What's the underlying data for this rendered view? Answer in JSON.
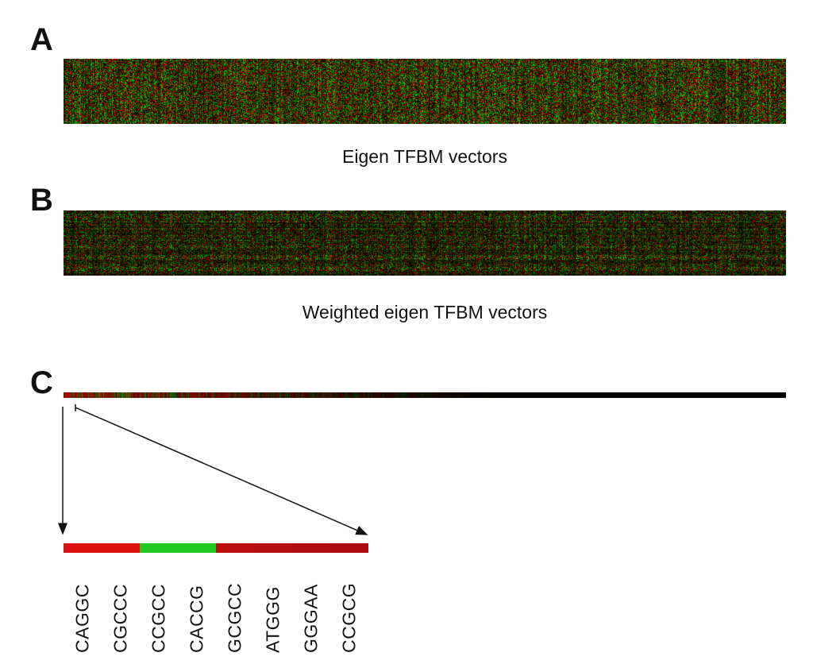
{
  "panels": {
    "a": {
      "letter": "A",
      "caption": "Eigen TFBM vectors"
    },
    "b": {
      "letter": "B",
      "caption": "Weighted eigen TFBM vectors"
    },
    "c": {
      "letter": "C"
    }
  },
  "colors": {
    "red": "#e01010",
    "green": "#10d020",
    "dark": "#000000",
    "dark_red": "#b00000"
  },
  "zoom_strip": [
    {
      "motif": "CAGGC",
      "color": "#dd1111"
    },
    {
      "motif": "CGCCC",
      "color": "#dd1111"
    },
    {
      "motif": "CCGCC",
      "color": "#22cc22"
    },
    {
      "motif": "CACCG",
      "color": "#22cc22"
    },
    {
      "motif": "GCGCC",
      "color": "#bb0f0f"
    },
    {
      "motif": "ATGGG",
      "color": "#b50e0e"
    },
    {
      "motif": "GGGAA",
      "color": "#b00e0e"
    },
    {
      "motif": "CCGCG",
      "color": "#a80c0c"
    }
  ]
}
